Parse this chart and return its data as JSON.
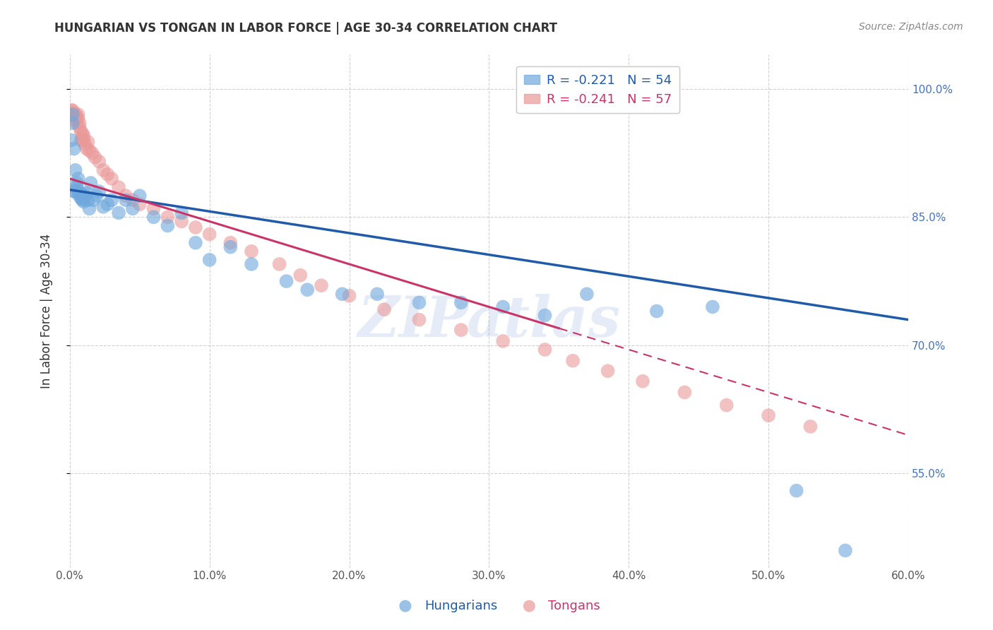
{
  "title": "HUNGARIAN VS TONGAN IN LABOR FORCE | AGE 30-34 CORRELATION CHART",
  "source": "Source: ZipAtlas.com",
  "ylabel": "In Labor Force | Age 30-34",
  "xlim": [
    0.0,
    0.6
  ],
  "ylim": [
    0.44,
    1.04
  ],
  "yticks": [
    0.55,
    0.7,
    0.85,
    1.0
  ],
  "ytick_labels": [
    "55.0%",
    "70.0%",
    "85.0%",
    "100.0%"
  ],
  "xticks": [
    0.0,
    0.1,
    0.2,
    0.3,
    0.4,
    0.5,
    0.6
  ],
  "xtick_labels": [
    "0.0%",
    "10.0%",
    "20.0%",
    "30.0%",
    "40.0%",
    "50.0%",
    "60.0%"
  ],
  "hungarian_R": -0.221,
  "hungarian_N": 54,
  "tongan_R": -0.241,
  "tongan_N": 57,
  "hungarian_color": "#6fa8dc",
  "tongan_color": "#ea9999",
  "trendline_hungarian_color": "#1f5baa",
  "trendline_tongan_color": "#cc3366",
  "watermark": "ZIPatlas",
  "hungarian_x": [
    0.001,
    0.002,
    0.002,
    0.003,
    0.003,
    0.004,
    0.004,
    0.005,
    0.005,
    0.006,
    0.006,
    0.007,
    0.007,
    0.008,
    0.008,
    0.009,
    0.009,
    0.01,
    0.01,
    0.011,
    0.012,
    0.013,
    0.014,
    0.015,
    0.017,
    0.019,
    0.021,
    0.024,
    0.027,
    0.03,
    0.035,
    0.04,
    0.045,
    0.05,
    0.06,
    0.07,
    0.08,
    0.09,
    0.1,
    0.115,
    0.13,
    0.155,
    0.17,
    0.195,
    0.22,
    0.25,
    0.28,
    0.31,
    0.34,
    0.37,
    0.42,
    0.46,
    0.52,
    0.555
  ],
  "hungarian_y": [
    0.94,
    0.96,
    0.97,
    0.88,
    0.93,
    0.88,
    0.905,
    0.89,
    0.885,
    0.88,
    0.895,
    0.878,
    0.875,
    0.872,
    0.878,
    0.87,
    0.872,
    0.875,
    0.868,
    0.875,
    0.878,
    0.87,
    0.86,
    0.89,
    0.87,
    0.875,
    0.88,
    0.862,
    0.865,
    0.87,
    0.855,
    0.87,
    0.86,
    0.875,
    0.85,
    0.84,
    0.855,
    0.82,
    0.8,
    0.815,
    0.795,
    0.775,
    0.765,
    0.76,
    0.76,
    0.75,
    0.75,
    0.745,
    0.735,
    0.76,
    0.74,
    0.745,
    0.53,
    0.46
  ],
  "tongan_x": [
    0.001,
    0.001,
    0.002,
    0.002,
    0.003,
    0.003,
    0.004,
    0.004,
    0.005,
    0.005,
    0.006,
    0.006,
    0.007,
    0.007,
    0.008,
    0.008,
    0.009,
    0.009,
    0.01,
    0.01,
    0.011,
    0.012,
    0.013,
    0.014,
    0.016,
    0.018,
    0.021,
    0.024,
    0.027,
    0.03,
    0.035,
    0.04,
    0.045,
    0.05,
    0.06,
    0.07,
    0.08,
    0.09,
    0.1,
    0.115,
    0.13,
    0.15,
    0.165,
    0.18,
    0.2,
    0.225,
    0.25,
    0.28,
    0.31,
    0.34,
    0.36,
    0.385,
    0.41,
    0.44,
    0.47,
    0.5,
    0.53
  ],
  "tongan_y": [
    0.97,
    0.975,
    0.975,
    0.97,
    0.968,
    0.972,
    0.965,
    0.97,
    0.968,
    0.96,
    0.965,
    0.97,
    0.96,
    0.955,
    0.95,
    0.94,
    0.948,
    0.942,
    0.945,
    0.94,
    0.935,
    0.93,
    0.938,
    0.928,
    0.925,
    0.92,
    0.915,
    0.905,
    0.9,
    0.895,
    0.885,
    0.875,
    0.87,
    0.865,
    0.86,
    0.85,
    0.845,
    0.838,
    0.83,
    0.82,
    0.81,
    0.795,
    0.782,
    0.77,
    0.758,
    0.742,
    0.73,
    0.718,
    0.705,
    0.695,
    0.682,
    0.67,
    0.658,
    0.645,
    0.63,
    0.618,
    0.605
  ],
  "trendline_h_x0": 0.0,
  "trendline_h_y0": 0.882,
  "trendline_h_x1": 0.6,
  "trendline_h_y1": 0.73,
  "trendline_t_x0": 0.0,
  "trendline_t_y0": 0.895,
  "trendline_t_x1": 0.6,
  "trendline_t_y1": 0.595
}
